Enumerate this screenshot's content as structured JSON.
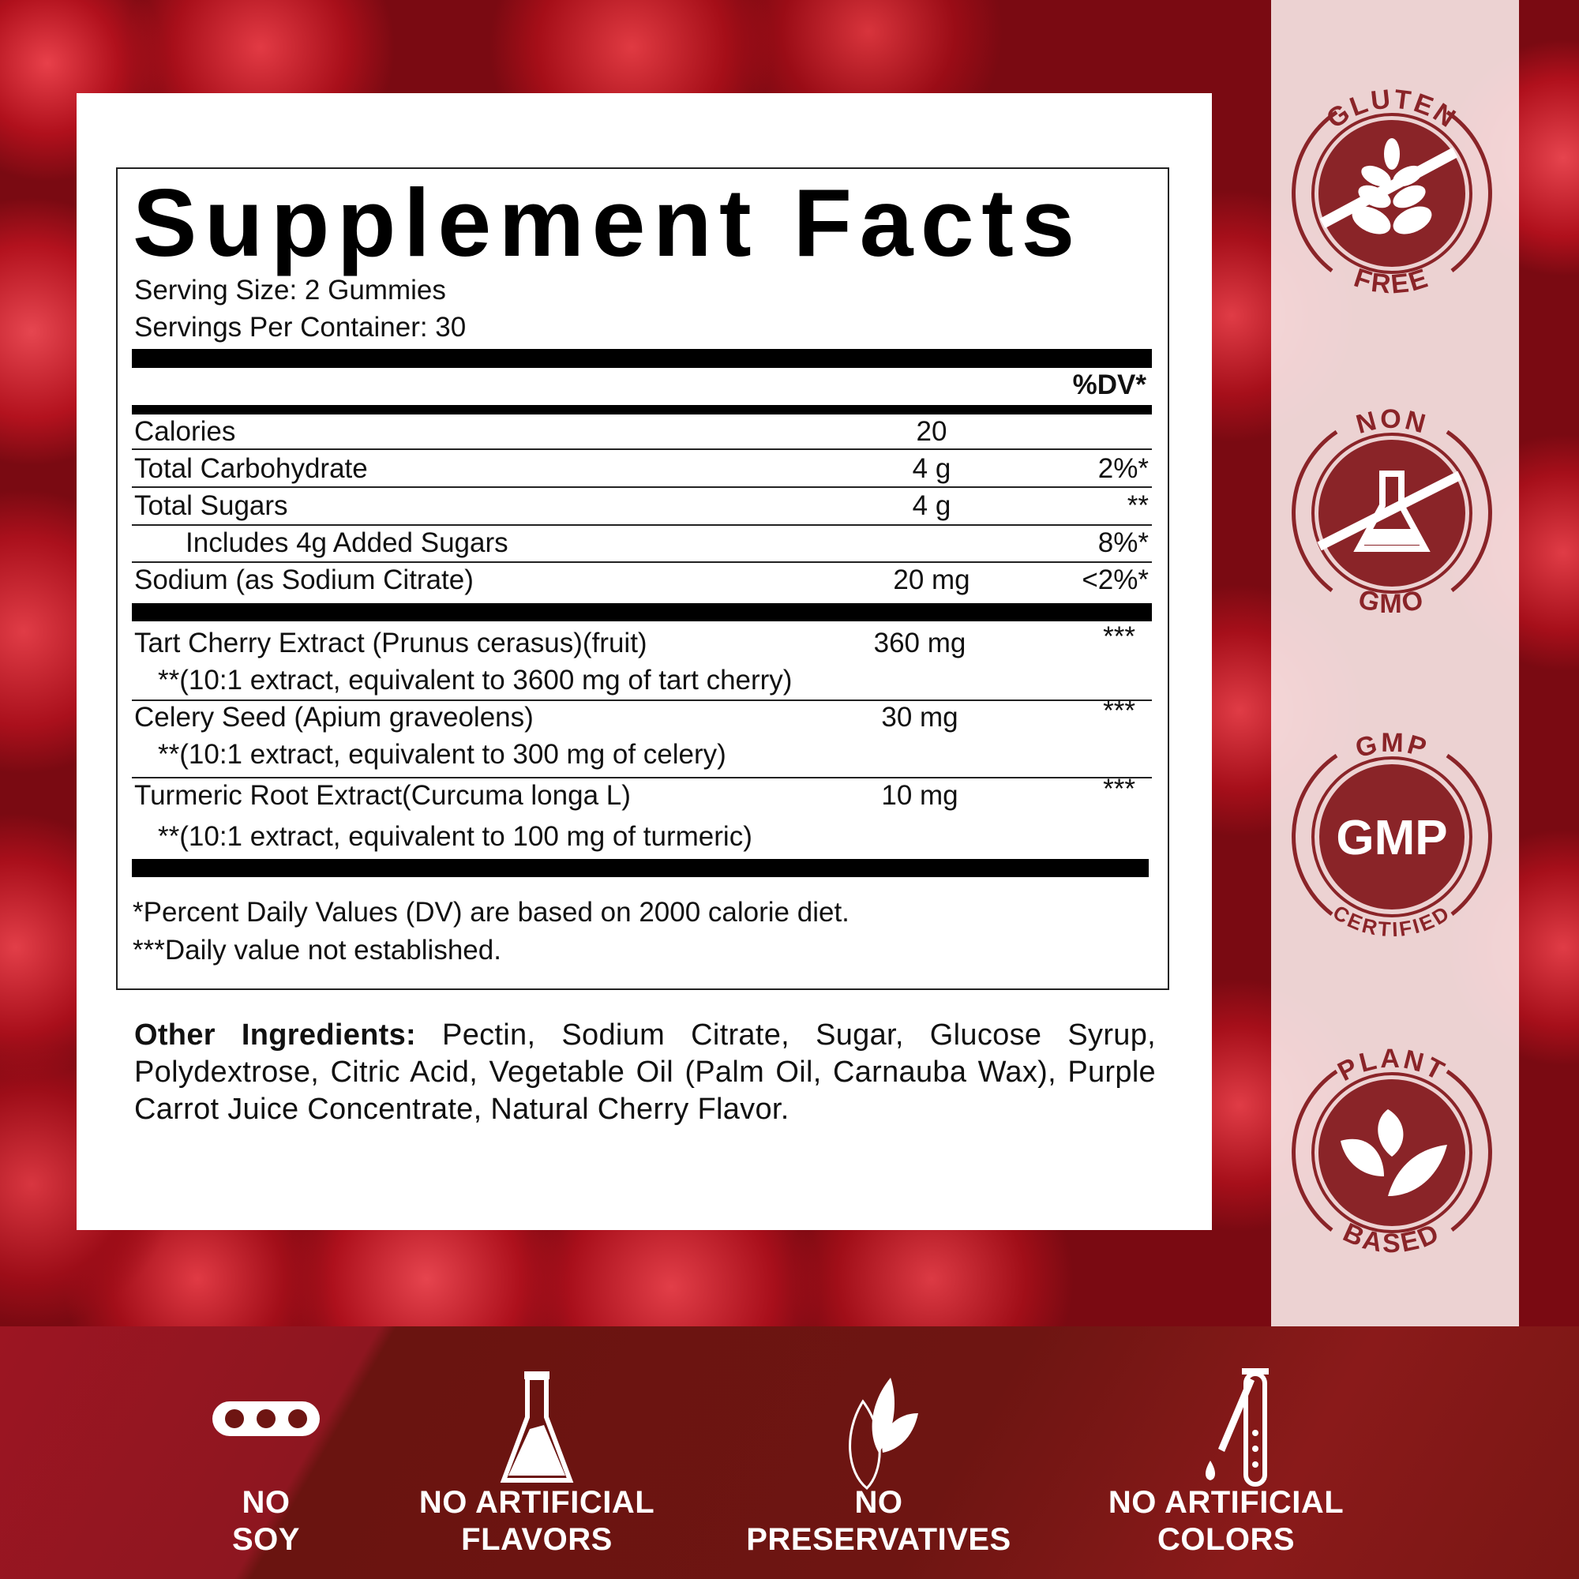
{
  "title": "Supplement Facts",
  "serving_size": "Serving Size: 2 Gummies",
  "servings_per_container": "Servings Per Container: 30",
  "dv_header": "%DV*",
  "nutrients": [
    {
      "name": "Calories",
      "amount": "20",
      "dv": ""
    },
    {
      "name": "Total Carbohydrate",
      "amount": "4 g",
      "dv": "2%*"
    },
    {
      "name": "Total Sugars",
      "amount": "4 g",
      "dv": "**"
    },
    {
      "name": "Includes 4g Added Sugars",
      "amount": "",
      "dv": "8%*"
    },
    {
      "name": "Sodium (as Sodium Citrate)",
      "amount": "20 mg",
      "dv": "<2%*"
    }
  ],
  "ingredients": [
    {
      "name": "Tart Cherry Extract (Prunus cerasus)(fruit)",
      "amount": "360 mg",
      "dv": "***",
      "note": "**(10:1 extract, equivalent to 3600 mg of tart cherry)"
    },
    {
      "name": "Celery Seed (Apium graveolens)",
      "amount": "30 mg",
      "dv": "***",
      "note": "**(10:1 extract, equivalent to 300 mg of celery)"
    },
    {
      "name": "Turmeric Root Extract(Curcuma longa L)",
      "amount": "10 mg",
      "dv": "***",
      "note": "**(10:1 extract, equivalent to 100 mg of turmeric)"
    }
  ],
  "footnotes": [
    "*Percent Daily Values (DV) are based on 2000 calorie diet.",
    "***Daily value not established."
  ],
  "other_ingredients": {
    "label": "Other Ingredients:",
    "text": " Pectin, Sodium Citrate, Sugar, Glucose Syrup, Polydextrose, Citric Acid, Vegetable Oil (Palm Oil, Carnauba Wax), Purple Carrot Juice Concentrate, Natural Cherry Flavor."
  },
  "badges": [
    {
      "top": "GLUTEN",
      "bottom": "FREE",
      "icon": "wheat-crossed-icon"
    },
    {
      "top": "NON",
      "bottom": "GMO",
      "icon": "flask-crossed-icon"
    },
    {
      "top": "GMP",
      "bottom": "CERTIFIED",
      "icon": "gmp-seal-icon",
      "center_text": "GMP"
    },
    {
      "top": "PLANT",
      "bottom": "BASED",
      "icon": "leaves-icon"
    }
  ],
  "features": [
    {
      "line1": "NO",
      "line2": "SOY",
      "icon": "soybean-icon"
    },
    {
      "line1": "NO ARTIFICIAL",
      "line2": "FLAVORS",
      "icon": "flask-icon"
    },
    {
      "line1": "NO",
      "line2": "PRESERVATIVES",
      "icon": "leaf-icon"
    },
    {
      "line1": "NO ARTIFICIAL",
      "line2": "COLORS",
      "icon": "dropper-test-tube-icon"
    }
  ],
  "colors": {
    "badge": "#8a2428",
    "band": "#6e1512",
    "cherry": "#b0101c"
  }
}
